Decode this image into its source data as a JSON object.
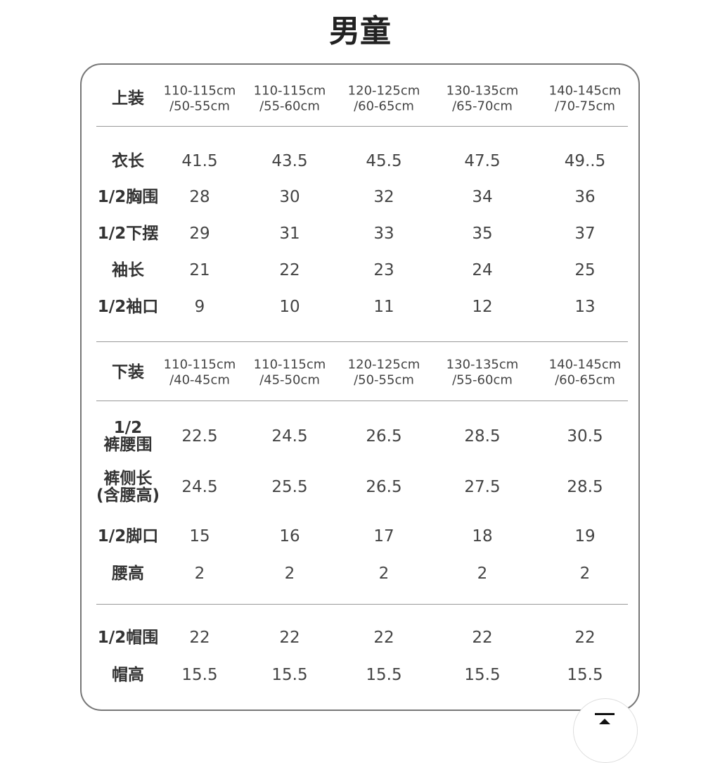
{
  "title": "男童",
  "tops": {
    "label": "上装",
    "sizes": [
      {
        "height": "110-115cm",
        "weight": "/50-55cm"
      },
      {
        "height": "110-115cm",
        "weight": "/55-60cm"
      },
      {
        "height": "120-125cm",
        "weight": "/60-65cm"
      },
      {
        "height": "130-135cm",
        "weight": "/65-70cm"
      },
      {
        "height": "140-145cm",
        "weight": "/70-75cm"
      }
    ],
    "rows": [
      {
        "label": "衣长",
        "values": [
          "41.5",
          "43.5",
          "45.5",
          "47.5",
          "49..5"
        ]
      },
      {
        "label": "1/2胸围",
        "values": [
          "28",
          "30",
          "32",
          "34",
          "36"
        ]
      },
      {
        "label": "1/2下摆",
        "values": [
          "29",
          "31",
          "33",
          "35",
          "37"
        ]
      },
      {
        "label": "袖长",
        "values": [
          "21",
          "22",
          "23",
          "24",
          "25"
        ]
      },
      {
        "label": "1/2袖口",
        "values": [
          "9",
          "10",
          "11",
          "12",
          "13"
        ]
      }
    ]
  },
  "bottoms": {
    "label": "下装",
    "sizes": [
      {
        "height": "110-115cm",
        "weight": "/40-45cm"
      },
      {
        "height": "110-115cm",
        "weight": "/45-50cm"
      },
      {
        "height": "120-125cm",
        "weight": "/50-55cm"
      },
      {
        "height": "130-135cm",
        "weight": "/55-60cm"
      },
      {
        "height": "140-145cm",
        "weight": "/60-65cm"
      }
    ],
    "rows": [
      {
        "label": "1/2",
        "label2": "裤腰围",
        "values": [
          "22.5",
          "24.5",
          "26.5",
          "28.5",
          "30.5"
        ]
      },
      {
        "label": "裤侧长",
        "label2": "(含腰高)",
        "values": [
          "24.5",
          "25.5",
          "26.5",
          "27.5",
          "28.5"
        ]
      },
      {
        "label": "1/2脚口",
        "values": [
          "15",
          "16",
          "17",
          "18",
          "19"
        ]
      },
      {
        "label": "腰高",
        "values": [
          "2",
          "2",
          "2",
          "2",
          "2"
        ]
      }
    ]
  },
  "hat": {
    "rows": [
      {
        "label": "1/2帽围",
        "values": [
          "22",
          "22",
          "22",
          "22",
          "22"
        ]
      },
      {
        "label": "帽高",
        "values": [
          "15.5",
          "15.5",
          "15.5",
          "15.5",
          "15.5"
        ]
      }
    ]
  },
  "back_to_top_icon": "arrow-up-to-line-icon"
}
